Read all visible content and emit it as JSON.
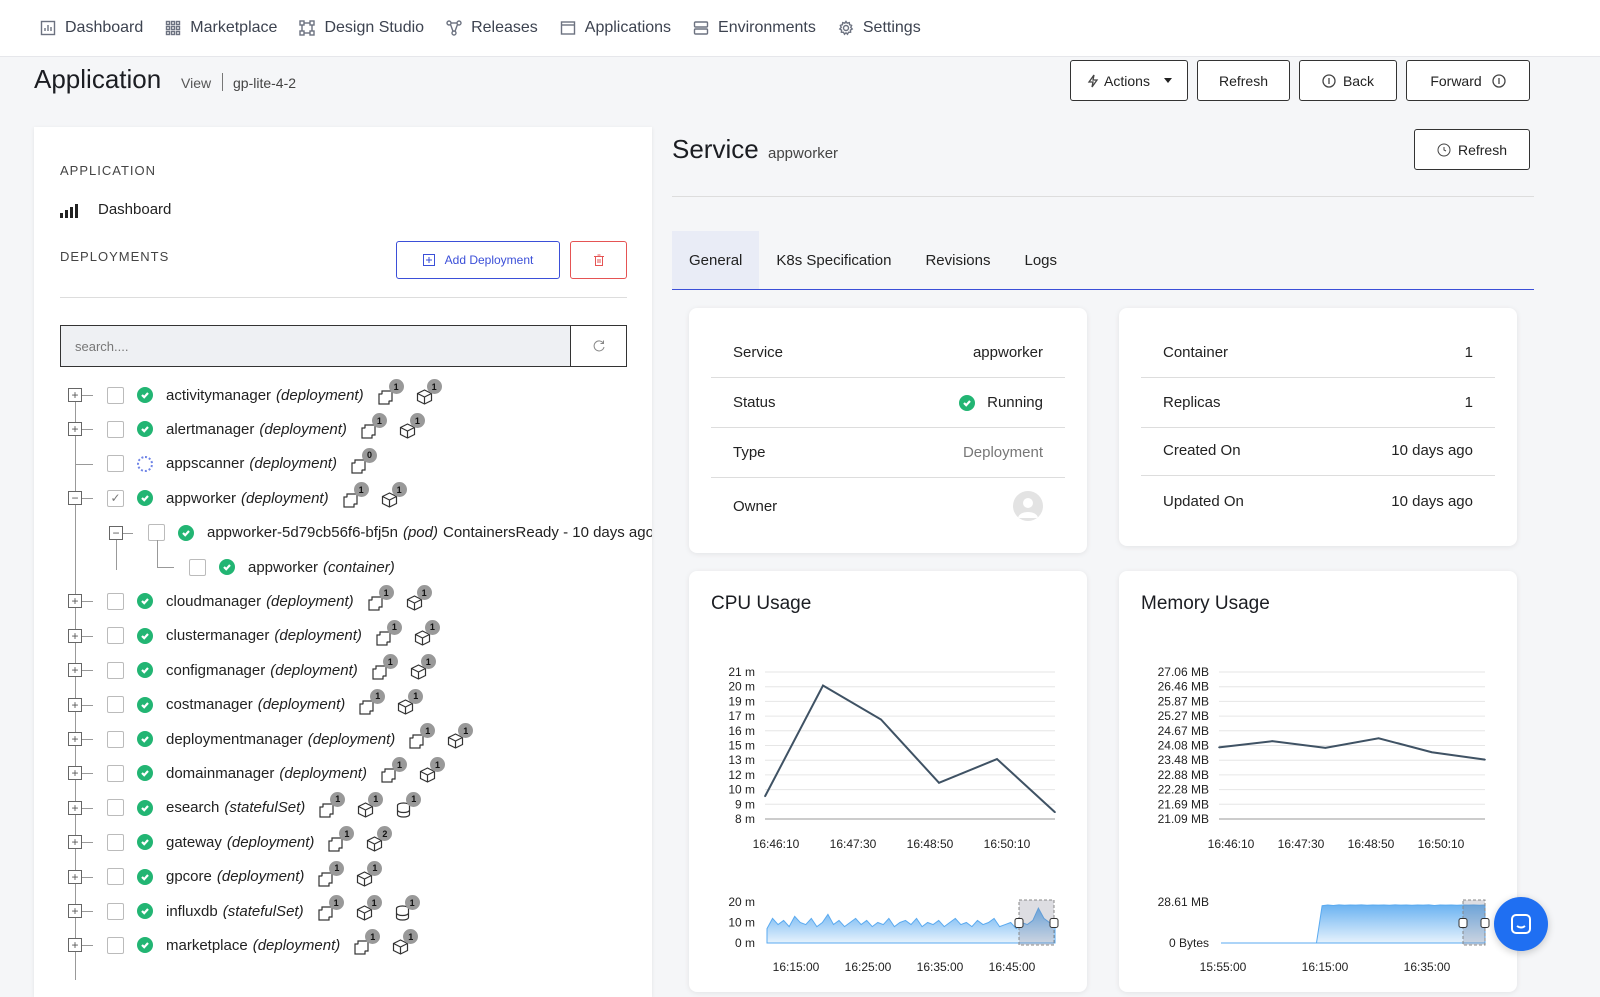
{
  "nav": {
    "items": [
      {
        "label": "Dashboard",
        "icon": "dashboard-icon"
      },
      {
        "label": "Marketplace",
        "icon": "grid-icon"
      },
      {
        "label": "Design Studio",
        "icon": "design-studio-icon"
      },
      {
        "label": "Releases",
        "icon": "releases-icon"
      },
      {
        "label": "Applications",
        "icon": "applications-icon"
      },
      {
        "label": "Environments",
        "icon": "environments-icon"
      },
      {
        "label": "Settings",
        "icon": "gear-icon"
      }
    ]
  },
  "header": {
    "title": "Application",
    "view_label": "View",
    "app_id": "gp-lite-4-2",
    "actions_label": "Actions",
    "refresh_label": "Refresh",
    "back_label": "Back",
    "forward_label": "Forward"
  },
  "left": {
    "application_label": "APPLICATION",
    "dashboard_label": "Dashboard",
    "deployments_label": "DEPLOYMENTS",
    "add_deployment_label": "Add Deployment",
    "search_placeholder": "search....",
    "tree": [
      {
        "name": "activitymanager",
        "kind": "(deployment)",
        "status": "ok",
        "badges": [
          "1",
          "1"
        ],
        "icons": [
          "pods-icon",
          "cube-icon"
        ]
      },
      {
        "name": "alertmanager",
        "kind": "(deployment)",
        "status": "ok",
        "badges": [
          "1",
          "1"
        ],
        "icons": [
          "pods-icon",
          "cube-icon"
        ]
      },
      {
        "name": "appscanner",
        "kind": "(deployment)",
        "status": "pending",
        "badges": [
          "0"
        ],
        "icons": [
          "pods-icon"
        ]
      },
      {
        "name": "appworker",
        "kind": "(deployment)",
        "status": "ok",
        "checked": true,
        "expanded": true,
        "badges": [
          "1",
          "1"
        ],
        "icons": [
          "pods-icon",
          "cube-icon"
        ]
      },
      {
        "name": "appworker-5d79cb56f6-bfj5n",
        "kind": "(pod)",
        "extra": "ContainersReady - 10 days ago",
        "status": "ok",
        "level": 1
      },
      {
        "name": "appworker",
        "kind": "(container)",
        "status": "ok",
        "level": 2
      },
      {
        "name": "cloudmanager",
        "kind": "(deployment)",
        "status": "ok",
        "badges": [
          "1",
          "1"
        ],
        "icons": [
          "pods-icon",
          "cube-icon"
        ]
      },
      {
        "name": "clustermanager",
        "kind": "(deployment)",
        "status": "ok",
        "badges": [
          "1",
          "1"
        ],
        "icons": [
          "pods-icon",
          "cube-icon"
        ]
      },
      {
        "name": "configmanager",
        "kind": "(deployment)",
        "status": "ok",
        "badges": [
          "1",
          "1"
        ],
        "icons": [
          "pods-icon",
          "cube-icon"
        ]
      },
      {
        "name": "costmanager",
        "kind": "(deployment)",
        "status": "ok",
        "badges": [
          "1",
          "1"
        ],
        "icons": [
          "pods-icon",
          "cube-icon"
        ]
      },
      {
        "name": "deploymentmanager",
        "kind": "(deployment)",
        "status": "ok",
        "badges": [
          "1",
          "1"
        ],
        "icons": [
          "pods-icon",
          "cube-icon"
        ]
      },
      {
        "name": "domainmanager",
        "kind": "(deployment)",
        "status": "ok",
        "badges": [
          "1",
          "1"
        ],
        "icons": [
          "pods-icon",
          "cube-icon"
        ]
      },
      {
        "name": "esearch",
        "kind": "(statefulSet)",
        "status": "ok",
        "badges": [
          "1",
          "1",
          "1"
        ],
        "icons": [
          "pods-icon",
          "cube-icon",
          "database-icon"
        ]
      },
      {
        "name": "gateway",
        "kind": "(deployment)",
        "status": "ok",
        "badges": [
          "1",
          "2"
        ],
        "icons": [
          "pods-icon",
          "cube-icon"
        ]
      },
      {
        "name": "gpcore",
        "kind": "(deployment)",
        "status": "ok",
        "badges": [
          "1",
          "1"
        ],
        "icons": [
          "pods-icon",
          "cube-icon"
        ]
      },
      {
        "name": "influxdb",
        "kind": "(statefulSet)",
        "status": "ok",
        "badges": [
          "1",
          "1",
          "1"
        ],
        "icons": [
          "pods-icon",
          "cube-icon",
          "database-icon"
        ]
      },
      {
        "name": "marketplace",
        "kind": "(deployment)",
        "status": "ok",
        "badges": [
          "1",
          "1"
        ],
        "icons": [
          "pods-icon",
          "cube-icon"
        ]
      }
    ]
  },
  "service": {
    "title": "Service",
    "name": "appworker",
    "refresh_label": "Refresh",
    "tabs": [
      "General",
      "K8s Specification",
      "Revisions",
      "Logs"
    ],
    "active_tab": "General",
    "info_left": [
      {
        "label": "Service",
        "value": "appworker"
      },
      {
        "label": "Status",
        "value": "Running"
      },
      {
        "label": "Type",
        "value": "Deployment"
      },
      {
        "label": "Owner",
        "value": ""
      }
    ],
    "info_right": [
      {
        "label": "Container",
        "value": "1"
      },
      {
        "label": "Replicas",
        "value": "1"
      },
      {
        "label": "Created On",
        "value": "10 days ago"
      },
      {
        "label": "Updated On",
        "value": "10 days ago"
      }
    ]
  },
  "colors": {
    "accent": "#3b4fd8",
    "danger": "#e55353",
    "success": "#22b573",
    "line": "#3f5264",
    "area": "#5aaaf0",
    "chat": "#1f6ff2"
  },
  "chart_data": [
    {
      "type": "line",
      "title": "CPU Usage",
      "x_ticks": [
        "16:46:10",
        "16:47:30",
        "16:48:50",
        "16:50:10"
      ],
      "y_ticks": [
        "8 m",
        "9 m",
        "10 m",
        "12 m",
        "13 m",
        "15 m",
        "16 m",
        "17 m",
        "19 m",
        "20 m",
        "21 m"
      ],
      "ylim": [
        8,
        21
      ],
      "series": [
        {
          "values": [
            10,
            19.8,
            16.8,
            11.2,
            13.3,
            8.6
          ]
        }
      ],
      "grid": true,
      "overview": {
        "type": "area",
        "y_ticks": [
          "0 m",
          "10 m",
          "20 m"
        ],
        "x_ticks": [
          "16:15:00",
          "16:25:00",
          "16:35:00",
          "16:45:00"
        ],
        "values": [
          7,
          12,
          9,
          11,
          8,
          13,
          10,
          9,
          12,
          8,
          10,
          14,
          9,
          11,
          8,
          10,
          12,
          9,
          11,
          8,
          10,
          9,
          12,
          8,
          10,
          11,
          9,
          12,
          8,
          10,
          9,
          11,
          8,
          10,
          12,
          9,
          10,
          8,
          11,
          9,
          10,
          12,
          8,
          9,
          10,
          7,
          10,
          9,
          11,
          17,
          12,
          10,
          8
        ]
      }
    },
    {
      "type": "line",
      "title": "Memory Usage",
      "x_ticks": [
        "16:46:10",
        "16:47:30",
        "16:48:50",
        "16:50:10"
      ],
      "y_ticks": [
        "21.09 MB",
        "21.69 MB",
        "22.28 MB",
        "22.88 MB",
        "23.48 MB",
        "24.08 MB",
        "24.67 MB",
        "25.27 MB",
        "25.87 MB",
        "26.46 MB",
        "27.06 MB"
      ],
      "ylim": [
        21.09,
        27.06
      ],
      "series": [
        {
          "values": [
            24.0,
            24.25,
            23.98,
            24.37,
            23.8,
            23.5
          ]
        }
      ],
      "grid": true,
      "overview": {
        "type": "area",
        "y_ticks": [
          "0 Bytes",
          "28.61 MB"
        ],
        "x_ticks": [
          "15:55:00",
          "16:15:00",
          "16:35:00"
        ],
        "values": [
          0,
          0,
          0,
          0,
          0,
          0,
          0,
          0,
          0,
          0,
          0,
          0,
          0,
          0,
          0,
          0,
          0,
          0,
          26,
          26.5,
          26.2,
          26.6,
          26.3,
          26.5,
          26.4,
          26.6,
          26.3,
          26.5,
          26.4,
          26.5,
          26.3,
          26.6,
          26.4,
          26.5,
          26.3,
          26.5,
          26.4,
          26.6,
          26.2,
          26.5,
          26.4,
          26.5,
          26.3,
          26.5,
          26.4,
          26.5,
          26.3,
          26.5
        ]
      }
    }
  ]
}
